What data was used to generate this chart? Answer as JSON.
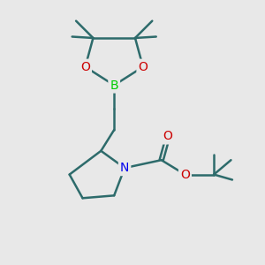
{
  "background_color": "#e8e8e8",
  "bond_color": "#2d6b6b",
  "atom_colors": {
    "B": "#00cc00",
    "O": "#cc0000",
    "N": "#0000ee",
    "C": "#2d6b6b"
  },
  "line_width": 1.8,
  "font_size_atoms": 10,
  "dpi": 100,
  "figsize": [
    3.0,
    3.0
  ],
  "xlim": [
    0,
    10
  ],
  "ylim": [
    0,
    10
  ],
  "Bx": 4.3,
  "By": 6.8,
  "OLx": 3.2,
  "OLy": 7.5,
  "ORx": 5.4,
  "ORy": 7.5,
  "CLx": 3.5,
  "CLy": 8.6,
  "CRx": 5.1,
  "CRy": 8.6,
  "CH2a_x": 4.3,
  "CH2a_y": 5.9,
  "CH2b_x": 4.3,
  "CH2b_y": 5.1,
  "C2x": 3.8,
  "C2y": 4.3,
  "Nx": 4.7,
  "Ny": 3.65,
  "C5x": 4.3,
  "C5y": 2.6,
  "C4x": 3.1,
  "C4y": 2.5,
  "C3x": 2.6,
  "C3y": 3.4,
  "Ccarbx": 6.1,
  "Ccarby": 3.95,
  "Ocarbx": 6.35,
  "Ocarby": 4.85,
  "Oestx": 7.0,
  "Oesty": 3.4,
  "tBux": 8.1,
  "tBuy": 3.4
}
